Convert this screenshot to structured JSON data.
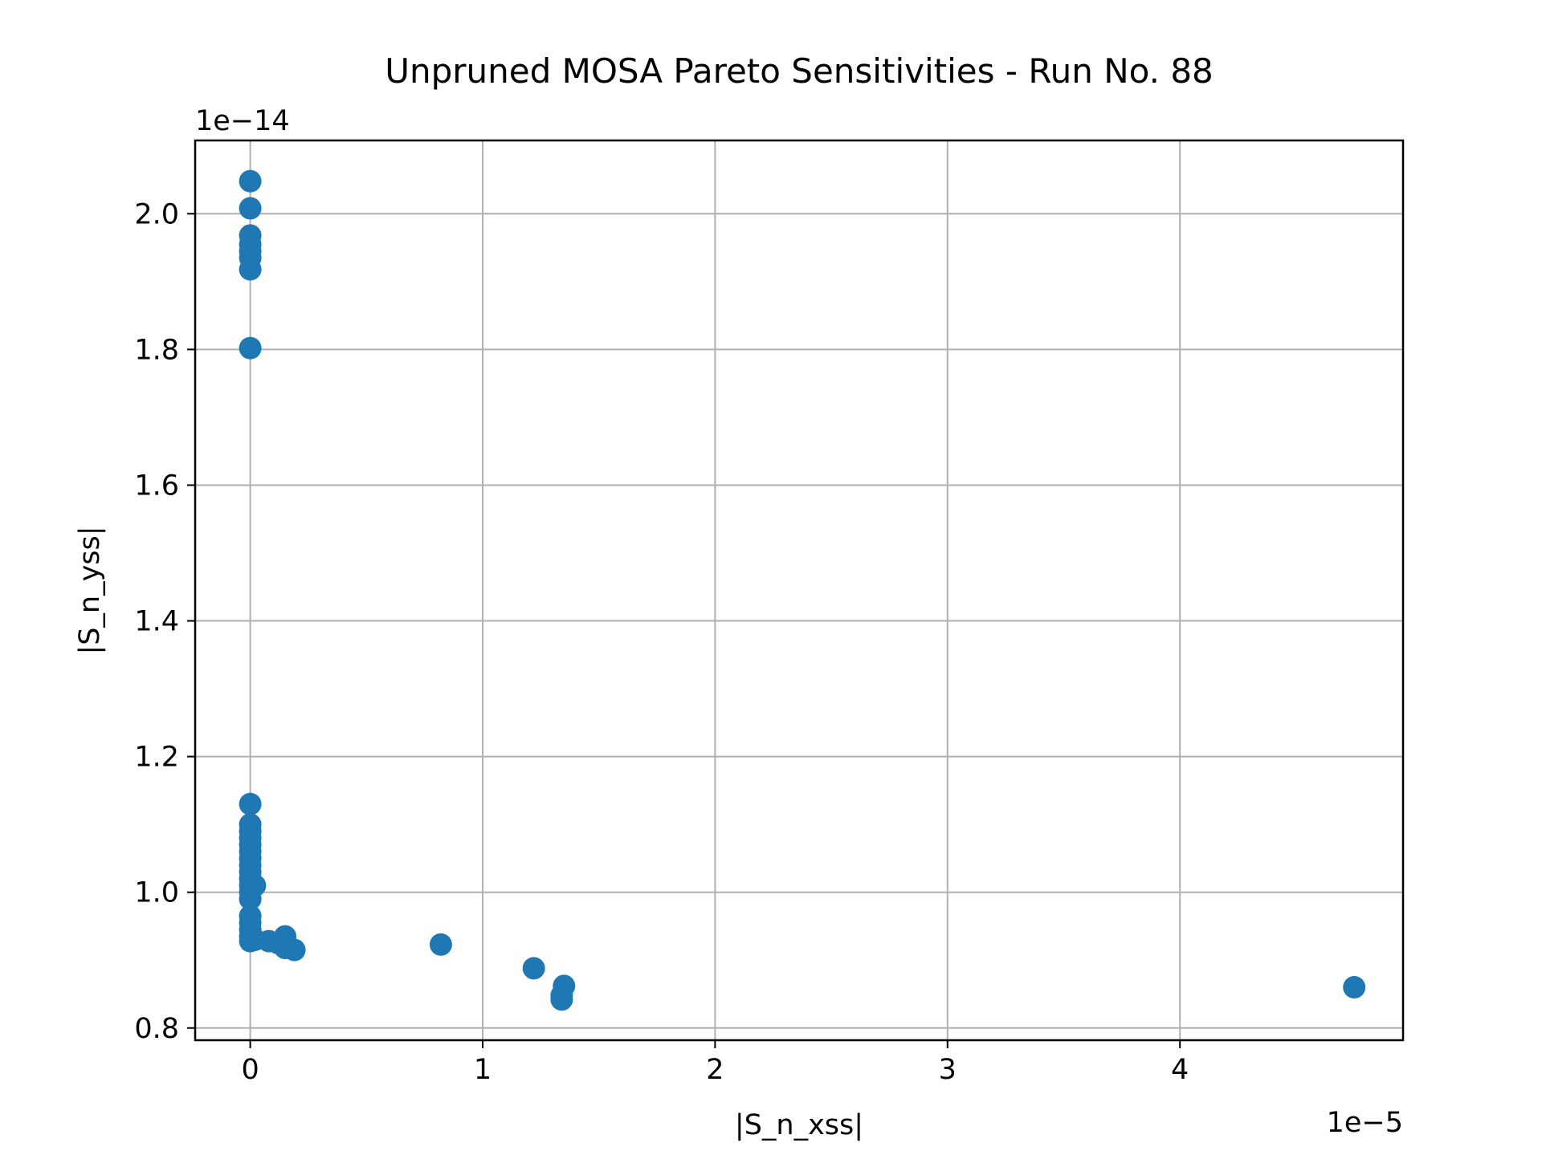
{
  "chart_data": {
    "type": "scatter",
    "title": "Unpruned MOSA Pareto Sensitivities - Run No. 88",
    "xlabel": "|S_n_xss|",
    "ylabel": "|S_n_yss|",
    "x_offset_text": "1e−5",
    "y_offset_text": "1e−14",
    "x_ticks": [
      0,
      1,
      2,
      3,
      4
    ],
    "x_tick_labels": [
      "0",
      "1",
      "2",
      "3",
      "4"
    ],
    "y_ticks": [
      0.8,
      1.0,
      1.2,
      1.4,
      1.6,
      1.8,
      2.0
    ],
    "y_tick_labels": [
      "0.8",
      "1.0",
      "1.2",
      "1.4",
      "1.6",
      "1.8",
      "2.0"
    ],
    "xlim": [
      -0.237,
      4.96
    ],
    "ylim": [
      0.782,
      2.108
    ],
    "x_scale_factor": "1e-5",
    "y_scale_factor": "1e-14",
    "grid": true,
    "marker_color": "#1f77b4",
    "series": [
      {
        "points": [
          [
            0.0,
            2.048
          ],
          [
            0.0,
            2.008
          ],
          [
            0.0,
            1.968
          ],
          [
            0.0,
            1.955
          ],
          [
            0.0,
            1.945
          ],
          [
            0.0,
            1.935
          ],
          [
            0.0,
            1.918
          ],
          [
            0.0,
            1.802
          ],
          [
            0.0,
            1.13
          ],
          [
            0.0,
            1.1
          ],
          [
            0.0,
            1.09
          ],
          [
            0.0,
            1.08
          ],
          [
            0.0,
            1.07
          ],
          [
            0.0,
            1.06
          ],
          [
            0.0,
            1.05
          ],
          [
            0.0,
            1.04
          ],
          [
            0.0,
            1.03
          ],
          [
            0.0,
            1.02
          ],
          [
            0.0,
            1.01
          ],
          [
            0.0,
            1.0
          ],
          [
            0.0,
            0.99
          ],
          [
            0.0,
            0.965
          ],
          [
            0.0,
            0.955
          ],
          [
            0.0,
            0.945
          ],
          [
            0.0,
            0.935
          ],
          [
            0.0,
            0.928
          ],
          [
            0.02,
            1.01
          ],
          [
            0.02,
            0.93
          ],
          [
            0.08,
            0.928
          ],
          [
            0.12,
            0.925
          ],
          [
            0.15,
            0.935
          ],
          [
            0.15,
            0.918
          ],
          [
            0.19,
            0.915
          ],
          [
            0.82,
            0.923
          ],
          [
            1.22,
            0.888
          ],
          [
            1.35,
            0.862
          ],
          [
            1.34,
            0.848
          ],
          [
            1.34,
            0.842
          ],
          [
            4.75,
            0.86
          ]
        ]
      }
    ]
  }
}
